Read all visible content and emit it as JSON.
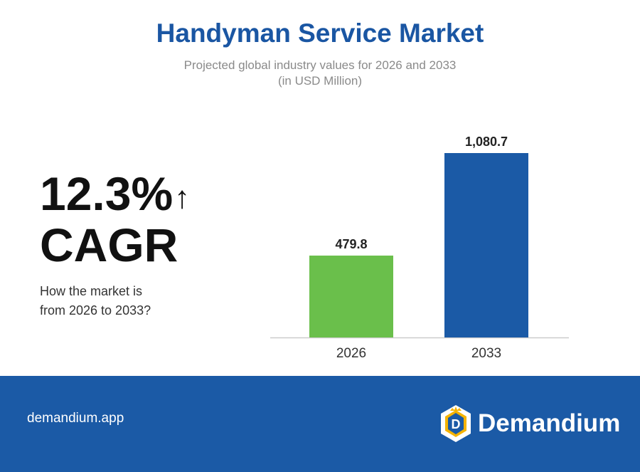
{
  "header": {
    "title": "Handyman Service Market",
    "subtitle_line1": "Projected global industry values for 2026 and 2033",
    "subtitle_line2": "(in USD Million)"
  },
  "cagr": {
    "value": "12.3%",
    "arrow_icon": "up-arrow-icon",
    "label": "CAGR",
    "question_line1": "How the market is",
    "question_line2": "from 2026 to 2033?"
  },
  "chart_data": {
    "type": "bar",
    "categories": [
      "2026",
      "2033"
    ],
    "values": [
      479.8,
      1080.7
    ],
    "value_labels": [
      "479.8",
      "1,080.7"
    ],
    "colors": [
      "#6abf4b",
      "#1b5aa6"
    ],
    "title": "Handyman Service Market",
    "subtitle": "Projected global industry values for 2026 and 2033 (in USD Million)",
    "xlabel": "",
    "ylabel": "",
    "ylim": [
      0,
      1080.7
    ],
    "grid": false,
    "legend": "none"
  },
  "footer": {
    "site": "demandium.app",
    "brand": "Demandium",
    "logo_icon": "demandium-logo-icon",
    "background": "#1b5aa6"
  }
}
